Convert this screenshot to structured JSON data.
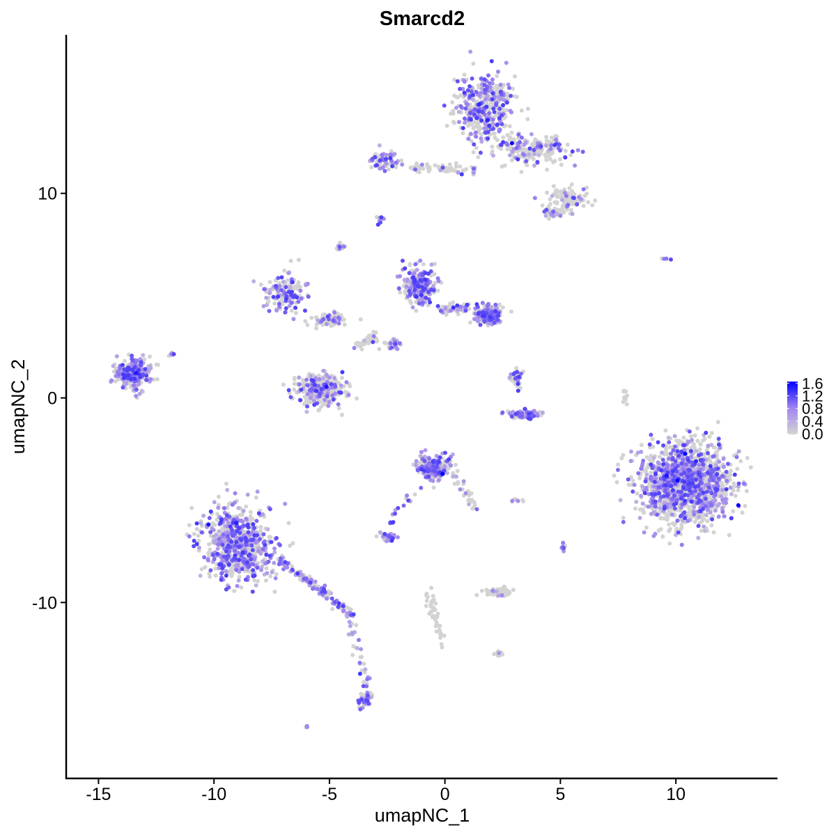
{
  "chart_data": {
    "type": "scatter",
    "title": "Smarcd2",
    "xlabel": "umapNC_1",
    "ylabel": "umapNC_2",
    "xlim": [
      -16.4,
      14.4
    ],
    "ylim": [
      -18.6,
      17.75
    ],
    "xticks": [
      -15,
      -10,
      -5,
      0,
      5,
      10
    ],
    "yticks": [
      -10,
      0,
      10
    ],
    "grid": false,
    "legend": {
      "placement": "right",
      "type": "colorbar",
      "ticks": [
        "1.6",
        "1.2",
        "0.8",
        "0.4",
        "0.0"
      ],
      "range": [
        0,
        1.65
      ],
      "low_color": "#d3d3d3",
      "high_color": "#0000ff"
    },
    "clusters_approx": [
      {
        "center": [
          1.75,
          14.2
        ],
        "spread": [
          1.1,
          1.3
        ],
        "n": 400,
        "expressing_fraction": 0.45
      },
      {
        "center": [
          3.7,
          12.1
        ],
        "spread": [
          1.3,
          0.6
        ],
        "n": 200,
        "expressing_fraction": 0.25
      },
      {
        "center": [
          5.4,
          9.7
        ],
        "spread": [
          0.8,
          0.5
        ],
        "n": 100,
        "expressing_fraction": 0.2
      },
      {
        "center": [
          4.6,
          9.1
        ],
        "spread": [
          0.4,
          0.2
        ],
        "n": 30,
        "expressing_fraction": 0.3
      },
      {
        "center": [
          -2.6,
          11.6
        ],
        "spread": [
          0.6,
          0.4
        ],
        "n": 80,
        "expressing_fraction": 0.5
      },
      {
        "from": [
          -1.4,
          11.3
        ],
        "to": [
          1.3,
          11.1
        ],
        "n": 60,
        "expressing_fraction": 0.15
      },
      {
        "center": [
          -2.8,
          8.7
        ],
        "spread": [
          0.15,
          0.2
        ],
        "n": 10,
        "expressing_fraction": 0.6
      },
      {
        "center": [
          -4.5,
          7.4
        ],
        "spread": [
          0.2,
          0.15
        ],
        "n": 15,
        "expressing_fraction": 0.5
      },
      {
        "center": [
          9.5,
          6.8
        ],
        "spread": [
          0.2,
          0.05
        ],
        "n": 4,
        "expressing_fraction": 0.8
      },
      {
        "center": [
          -6.9,
          5.1
        ],
        "spread": [
          0.8,
          0.7
        ],
        "n": 150,
        "expressing_fraction": 0.4
      },
      {
        "center": [
          -5.0,
          3.8
        ],
        "spread": [
          0.6,
          0.3
        ],
        "n": 80,
        "expressing_fraction": 0.2
      },
      {
        "center": [
          -1.1,
          5.5
        ],
        "spread": [
          0.6,
          0.7
        ],
        "n": 220,
        "expressing_fraction": 0.55
      },
      {
        "center": [
          1.9,
          4.1
        ],
        "spread": [
          0.5,
          0.4
        ],
        "n": 200,
        "expressing_fraction": 0.55
      },
      {
        "from": [
          -0.2,
          4.3
        ],
        "to": [
          1.0,
          4.4
        ],
        "n": 60,
        "expressing_fraction": 0.4
      },
      {
        "from": [
          -3.0,
          3.1
        ],
        "to": [
          -4.0,
          2.4
        ],
        "n": 40,
        "expressing_fraction": 0.15
      },
      {
        "center": [
          -2.3,
          2.6
        ],
        "spread": [
          0.3,
          0.2
        ],
        "n": 30,
        "expressing_fraction": 0.4
      },
      {
        "center": [
          -5.35,
          0.4
        ],
        "spread": [
          0.9,
          0.6
        ],
        "n": 350,
        "expressing_fraction": 0.25
      },
      {
        "center": [
          -13.5,
          1.2
        ],
        "spread": [
          0.6,
          0.6
        ],
        "n": 250,
        "expressing_fraction": 0.65
      },
      {
        "center": [
          -11.8,
          2.1
        ],
        "spread": [
          0.1,
          0.2
        ],
        "n": 8,
        "expressing_fraction": 0.3
      },
      {
        "center": [
          3.1,
          0.9
        ],
        "spread": [
          0.2,
          0.4
        ],
        "n": 30,
        "expressing_fraction": 0.5
      },
      {
        "center": [
          3.4,
          -0.8
        ],
        "spread": [
          0.7,
          0.2
        ],
        "n": 80,
        "expressing_fraction": 0.5
      },
      {
        "center": [
          7.8,
          0.0
        ],
        "spread": [
          0.1,
          0.4
        ],
        "n": 12,
        "expressing_fraction": 0.0
      },
      {
        "center": [
          10.4,
          -4.1
        ],
        "spread": [
          1.6,
          1.6
        ],
        "n": 1500,
        "expressing_fraction": 0.4
      },
      {
        "center": [
          -0.5,
          -3.4
        ],
        "spread": [
          0.6,
          0.5
        ],
        "n": 220,
        "expressing_fraction": 0.55
      },
      {
        "from": [
          0.4,
          -3.7
        ],
        "to": [
          1.3,
          -5.4
        ],
        "n": 30,
        "expressing_fraction": 0.3
      },
      {
        "center": [
          -2.5,
          -6.8
        ],
        "spread": [
          0.3,
          0.15
        ],
        "n": 30,
        "expressing_fraction": 0.6
      },
      {
        "from": [
          -1.3,
          -4.5
        ],
        "to": [
          -2.4,
          -6.2
        ],
        "n": 15,
        "expressing_fraction": 0.7
      },
      {
        "center": [
          -9.0,
          -7.1
        ],
        "spread": [
          1.2,
          1.5
        ],
        "n": 700,
        "expressing_fraction": 0.55
      },
      {
        "from": [
          -7.2,
          -7.9
        ],
        "to": [
          -4.0,
          -10.6
        ],
        "n": 120,
        "expressing_fraction": 0.6
      },
      {
        "from": [
          -4.1,
          -10.9
        ],
        "to": [
          -3.2,
          -15.0
        ],
        "n": 40,
        "expressing_fraction": 0.5
      },
      {
        "center": [
          -3.5,
          -14.8
        ],
        "spread": [
          0.2,
          0.3
        ],
        "n": 30,
        "expressing_fraction": 0.6
      },
      {
        "center": [
          -5.95,
          -16.1
        ],
        "spread": [
          0.1,
          0.05
        ],
        "n": 4,
        "expressing_fraction": 0.9
      },
      {
        "center": [
          2.35,
          -9.5
        ],
        "spread": [
          0.5,
          0.15
        ],
        "n": 80,
        "expressing_fraction": 0.1
      },
      {
        "from": [
          -0.8,
          -9.3
        ],
        "to": [
          -0.1,
          -11.9
        ],
        "n": 40,
        "expressing_fraction": 0.05
      },
      {
        "center": [
          2.35,
          -12.5
        ],
        "spread": [
          0.15,
          0.1
        ],
        "n": 15,
        "expressing_fraction": 0.2
      },
      {
        "center": [
          5.1,
          -7.3
        ],
        "spread": [
          0.1,
          0.2
        ],
        "n": 8,
        "expressing_fraction": 0.6
      },
      {
        "center": [
          3.1,
          -5.0
        ],
        "spread": [
          0.2,
          0.05
        ],
        "n": 8,
        "expressing_fraction": 0.3
      }
    ]
  }
}
